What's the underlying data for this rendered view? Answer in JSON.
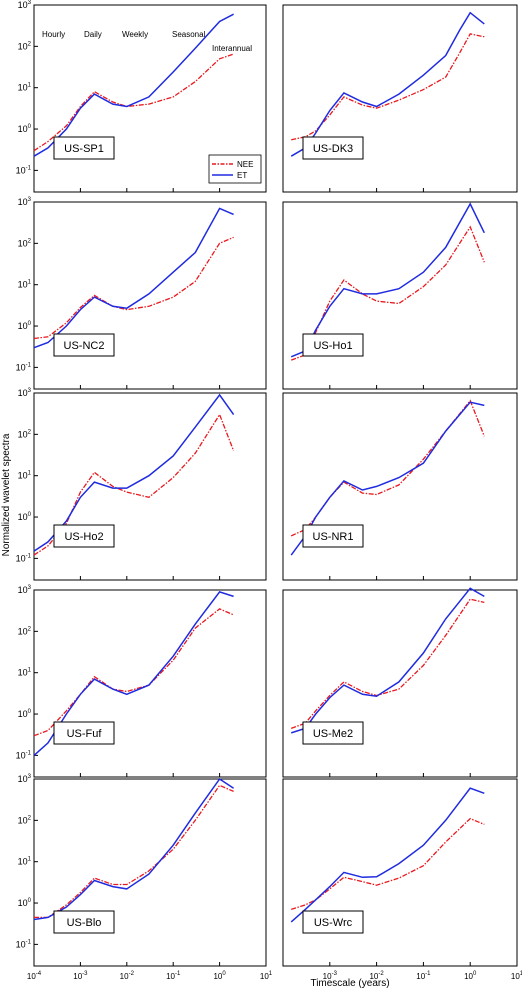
{
  "figure": {
    "ylabel": "Normalized wavelet spectra",
    "xlabel": "Timescale (years)",
    "x_ticks": [
      {
        "value": 0.0001,
        "base": "10",
        "exp": "-4"
      },
      {
        "value": 0.001,
        "base": "10",
        "exp": "-3"
      },
      {
        "value": 0.01,
        "base": "10",
        "exp": "-2"
      },
      {
        "value": 0.1,
        "base": "10",
        "exp": "-1"
      },
      {
        "value": 1,
        "base": "10",
        "exp": "0"
      },
      {
        "value": 10,
        "base": "10",
        "exp": "1"
      }
    ],
    "y_ticks": [
      {
        "value": 1000,
        "base": "10",
        "exp": "3"
      },
      {
        "value": 100,
        "base": "10",
        "exp": "2"
      },
      {
        "value": 10,
        "base": "10",
        "exp": "1"
      },
      {
        "value": 1,
        "base": "10",
        "exp": "0"
      },
      {
        "value": 0.1,
        "base": "10",
        "exp": "-1"
      }
    ],
    "timescale_labels": [
      "Hourly",
      "Daily",
      "Weekly",
      "Seasonal",
      "Interannual"
    ],
    "legend": {
      "entries": [
        "NEE",
        "ET"
      ],
      "colors": [
        "#e8191f",
        "#1f2be0"
      ],
      "placement": "inside lower-right of first panel"
    },
    "colors": {
      "nee": "#e8191f",
      "et": "#1f2be0"
    }
  },
  "chart_data": [
    {
      "type": "line",
      "title": "US-SP1",
      "xscale": "log",
      "yscale": "log",
      "xlim": [
        0.0001,
        10
      ],
      "ylim": [
        0.03,
        1000
      ],
      "x": [
        0.0001,
        0.0002,
        0.0005,
        0.001,
        0.002,
        0.005,
        0.01,
        0.03,
        0.1,
        0.3,
        1,
        2
      ],
      "series": [
        {
          "name": "NEE",
          "values": [
            0.3,
            0.5,
            1.2,
            3.5,
            8,
            4.5,
            3.5,
            4,
            6,
            14,
            50,
            65
          ]
        },
        {
          "name": "ET",
          "values": [
            0.22,
            0.35,
            1,
            3.2,
            7,
            4,
            3.5,
            6,
            24,
            90,
            400,
            600
          ]
        }
      ]
    },
    {
      "type": "line",
      "title": "US-DK3",
      "xscale": "log",
      "yscale": "log",
      "xlim": [
        0.0001,
        10
      ],
      "ylim": [
        0.03,
        1000
      ],
      "x": [
        0.00015,
        0.0003,
        0.0005,
        0.001,
        0.002,
        0.005,
        0.01,
        0.03,
        0.1,
        0.3,
        0.6,
        1,
        2
      ],
      "series": [
        {
          "name": "NEE",
          "values": [
            0.55,
            0.65,
            0.9,
            2.2,
            6,
            3.8,
            3.2,
            5,
            9,
            18,
            70,
            200,
            170
          ]
        },
        {
          "name": "ET",
          "values": [
            0.22,
            0.35,
            0.8,
            2.8,
            7.5,
            4.5,
            3.5,
            7,
            20,
            60,
            250,
            650,
            350
          ]
        }
      ]
    },
    {
      "type": "line",
      "title": "US-NC2",
      "xscale": "log",
      "yscale": "log",
      "xlim": [
        0.0001,
        10
      ],
      "ylim": [
        0.03,
        1000
      ],
      "x": [
        0.0001,
        0.0002,
        0.0005,
        0.001,
        0.002,
        0.005,
        0.01,
        0.03,
        0.1,
        0.3,
        1,
        2
      ],
      "series": [
        {
          "name": "NEE",
          "values": [
            0.5,
            0.55,
            1.2,
            2.8,
            5.5,
            3,
            2.5,
            3,
            5,
            12,
            100,
            140
          ]
        },
        {
          "name": "ET",
          "values": [
            0.3,
            0.4,
            1,
            2.5,
            5,
            3,
            2.7,
            6,
            20,
            60,
            700,
            500
          ]
        }
      ]
    },
    {
      "type": "line",
      "title": "US-Ho1",
      "xscale": "log",
      "yscale": "log",
      "xlim": [
        0.0001,
        10
      ],
      "ylim": [
        0.03,
        1000
      ],
      "x": [
        0.00015,
        0.0003,
        0.0005,
        0.001,
        0.002,
        0.005,
        0.01,
        0.03,
        0.1,
        0.3,
        1,
        2
      ],
      "series": [
        {
          "name": "NEE",
          "values": [
            0.15,
            0.2,
            0.7,
            4,
            13,
            6,
            4,
            3.5,
            9,
            30,
            250,
            35
          ]
        },
        {
          "name": "ET",
          "values": [
            0.18,
            0.25,
            0.8,
            3,
            8,
            6,
            6,
            8,
            20,
            80,
            900,
            180
          ]
        }
      ]
    },
    {
      "type": "line",
      "title": "US-Ho2",
      "xscale": "log",
      "yscale": "log",
      "xlim": [
        0.0001,
        10
      ],
      "ylim": [
        0.03,
        1000
      ],
      "x": [
        0.0001,
        0.0002,
        0.0005,
        0.001,
        0.002,
        0.005,
        0.01,
        0.03,
        0.1,
        0.3,
        1,
        2
      ],
      "series": [
        {
          "name": "NEE",
          "values": [
            0.12,
            0.2,
            0.7,
            4,
            12,
            5.5,
            4,
            3,
            9,
            35,
            300,
            40
          ]
        },
        {
          "name": "ET",
          "values": [
            0.15,
            0.25,
            0.8,
            3,
            7,
            5,
            5,
            10,
            30,
            150,
            900,
            300
          ]
        }
      ]
    },
    {
      "type": "line",
      "title": "US-NR1",
      "xscale": "log",
      "yscale": "log",
      "xlim": [
        0.0001,
        10
      ],
      "ylim": [
        0.03,
        1000
      ],
      "x": [
        0.00015,
        0.0003,
        0.0005,
        0.001,
        0.002,
        0.005,
        0.01,
        0.03,
        0.1,
        0.3,
        1,
        2
      ],
      "series": [
        {
          "name": "NEE",
          "values": [
            0.35,
            0.5,
            1,
            3,
            7,
            3.8,
            3.5,
            6,
            25,
            120,
            650,
            90
          ]
        },
        {
          "name": "ET",
          "values": [
            0.12,
            0.35,
            1,
            3,
            7.5,
            4.5,
            5.5,
            9,
            20,
            120,
            600,
            500
          ]
        }
      ]
    },
    {
      "type": "line",
      "title": "US-Fuf",
      "xscale": "log",
      "yscale": "log",
      "xlim": [
        0.0001,
        10
      ],
      "ylim": [
        0.03,
        1000
      ],
      "x": [
        0.0001,
        0.0002,
        0.0005,
        0.001,
        0.002,
        0.005,
        0.01,
        0.03,
        0.1,
        0.3,
        1,
        2
      ],
      "series": [
        {
          "name": "NEE",
          "values": [
            0.3,
            0.4,
            1.2,
            3,
            8,
            4,
            3.5,
            5,
            20,
            120,
            350,
            250
          ]
        },
        {
          "name": "ET",
          "values": [
            0.1,
            0.2,
            1,
            3,
            7,
            4,
            3,
            5,
            25,
            150,
            900,
            700
          ]
        }
      ]
    },
    {
      "type": "line",
      "title": "US-Me2",
      "xscale": "log",
      "yscale": "log",
      "xlim": [
        0.0001,
        10
      ],
      "ylim": [
        0.03,
        1000
      ],
      "x": [
        0.00015,
        0.0003,
        0.0005,
        0.001,
        0.002,
        0.005,
        0.01,
        0.03,
        0.1,
        0.3,
        1,
        2
      ],
      "series": [
        {
          "name": "NEE",
          "values": [
            0.45,
            0.6,
            1.2,
            2.8,
            6,
            3.5,
            2.8,
            4,
            15,
            80,
            600,
            500
          ]
        },
        {
          "name": "ET",
          "values": [
            0.35,
            0.45,
            1,
            2.5,
            5,
            3,
            2.7,
            6,
            30,
            200,
            1100,
            700
          ]
        }
      ]
    },
    {
      "type": "line",
      "title": "US-Blo",
      "xscale": "log",
      "yscale": "log",
      "xlim": [
        0.0001,
        10
      ],
      "ylim": [
        0.03,
        1000
      ],
      "x": [
        0.0001,
        0.0002,
        0.0005,
        0.001,
        0.002,
        0.005,
        0.01,
        0.03,
        0.1,
        0.3,
        1,
        2
      ],
      "series": [
        {
          "name": "NEE",
          "values": [
            0.45,
            0.45,
            0.9,
            1.8,
            4,
            2.8,
            2.8,
            6,
            20,
            100,
            700,
            500
          ]
        },
        {
          "name": "ET",
          "values": [
            0.4,
            0.45,
            0.8,
            1.6,
            3.5,
            2.5,
            2.2,
            5,
            25,
            150,
            1000,
            600
          ]
        }
      ]
    },
    {
      "type": "line",
      "title": "US-Wrc",
      "xscale": "log",
      "yscale": "log",
      "xlim": [
        0.0001,
        10
      ],
      "ylim": [
        0.03,
        1000
      ],
      "x": [
        0.00015,
        0.0003,
        0.0005,
        0.001,
        0.002,
        0.005,
        0.01,
        0.03,
        0.1,
        0.3,
        1,
        2
      ],
      "series": [
        {
          "name": "NEE",
          "values": [
            0.7,
            0.9,
            1.2,
            2.2,
            4.2,
            3.3,
            2.7,
            4,
            8,
            30,
            110,
            80
          ]
        },
        {
          "name": "ET",
          "values": [
            0.35,
            0.7,
            1.2,
            2.5,
            5.5,
            4.2,
            4.3,
            9,
            25,
            100,
            600,
            450
          ]
        }
      ]
    }
  ]
}
